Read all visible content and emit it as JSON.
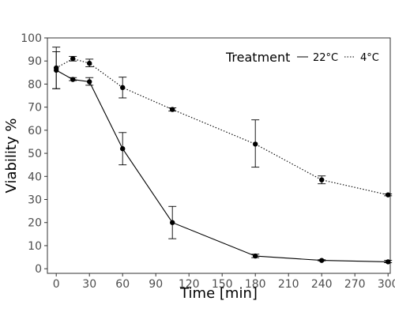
{
  "chart_data": {
    "type": "line",
    "xlabel": "Time [min]",
    "ylabel": "Viability %",
    "xlim": [
      -8,
      302
    ],
    "ylim": [
      -2,
      100
    ],
    "x_ticks": [
      0,
      30,
      60,
      90,
      120,
      150,
      180,
      210,
      240,
      270,
      300
    ],
    "y_ticks": [
      0,
      10,
      20,
      30,
      40,
      50,
      60,
      70,
      80,
      90,
      100
    ],
    "grid": false,
    "legend": {
      "title": "Treatment",
      "position": "top-right",
      "entries": [
        "22°C",
        "4°C"
      ]
    },
    "series": [
      {
        "name": "22°C",
        "line_style": "solid",
        "color": "#000000",
        "points": [
          {
            "x": 0,
            "y": 86,
            "ymin": 78,
            "ymax": 94
          },
          {
            "x": 15,
            "y": 82,
            "ymin": 81.5,
            "ymax": 82.8
          },
          {
            "x": 30,
            "y": 81,
            "ymin": 79.5,
            "ymax": 82.8
          },
          {
            "x": 60,
            "y": 52,
            "ymin": 45,
            "ymax": 59
          },
          {
            "x": 105,
            "y": 20,
            "ymin": 13,
            "ymax": 27
          },
          {
            "x": 180,
            "y": 5.5,
            "ymin": 4.8,
            "ymax": 6.3
          },
          {
            "x": 240,
            "y": 3.6,
            "ymin": 3.4,
            "ymax": 3.9
          },
          {
            "x": 300,
            "y": 3,
            "ymin": 2.6,
            "ymax": 3.6
          }
        ]
      },
      {
        "name": "4°C",
        "line_style": "dotted",
        "color": "#000000",
        "points": [
          {
            "x": 0,
            "y": 87,
            "ymin": 78,
            "ymax": 96
          },
          {
            "x": 15,
            "y": 91,
            "ymin": 90,
            "ymax": 92
          },
          {
            "x": 30,
            "y": 89,
            "ymin": 87.5,
            "ymax": 90.8
          },
          {
            "x": 60,
            "y": 78.5,
            "ymin": 74,
            "ymax": 83
          },
          {
            "x": 105,
            "y": 69,
            "ymin": 68.3,
            "ymax": 69.7
          },
          {
            "x": 180,
            "y": 54,
            "ymin": 44,
            "ymax": 64.5
          },
          {
            "x": 240,
            "y": 38.5,
            "ymin": 36.8,
            "ymax": 40.2
          },
          {
            "x": 300,
            "y": 32,
            "ymin": 31.6,
            "ymax": 32.4
          }
        ]
      }
    ]
  }
}
